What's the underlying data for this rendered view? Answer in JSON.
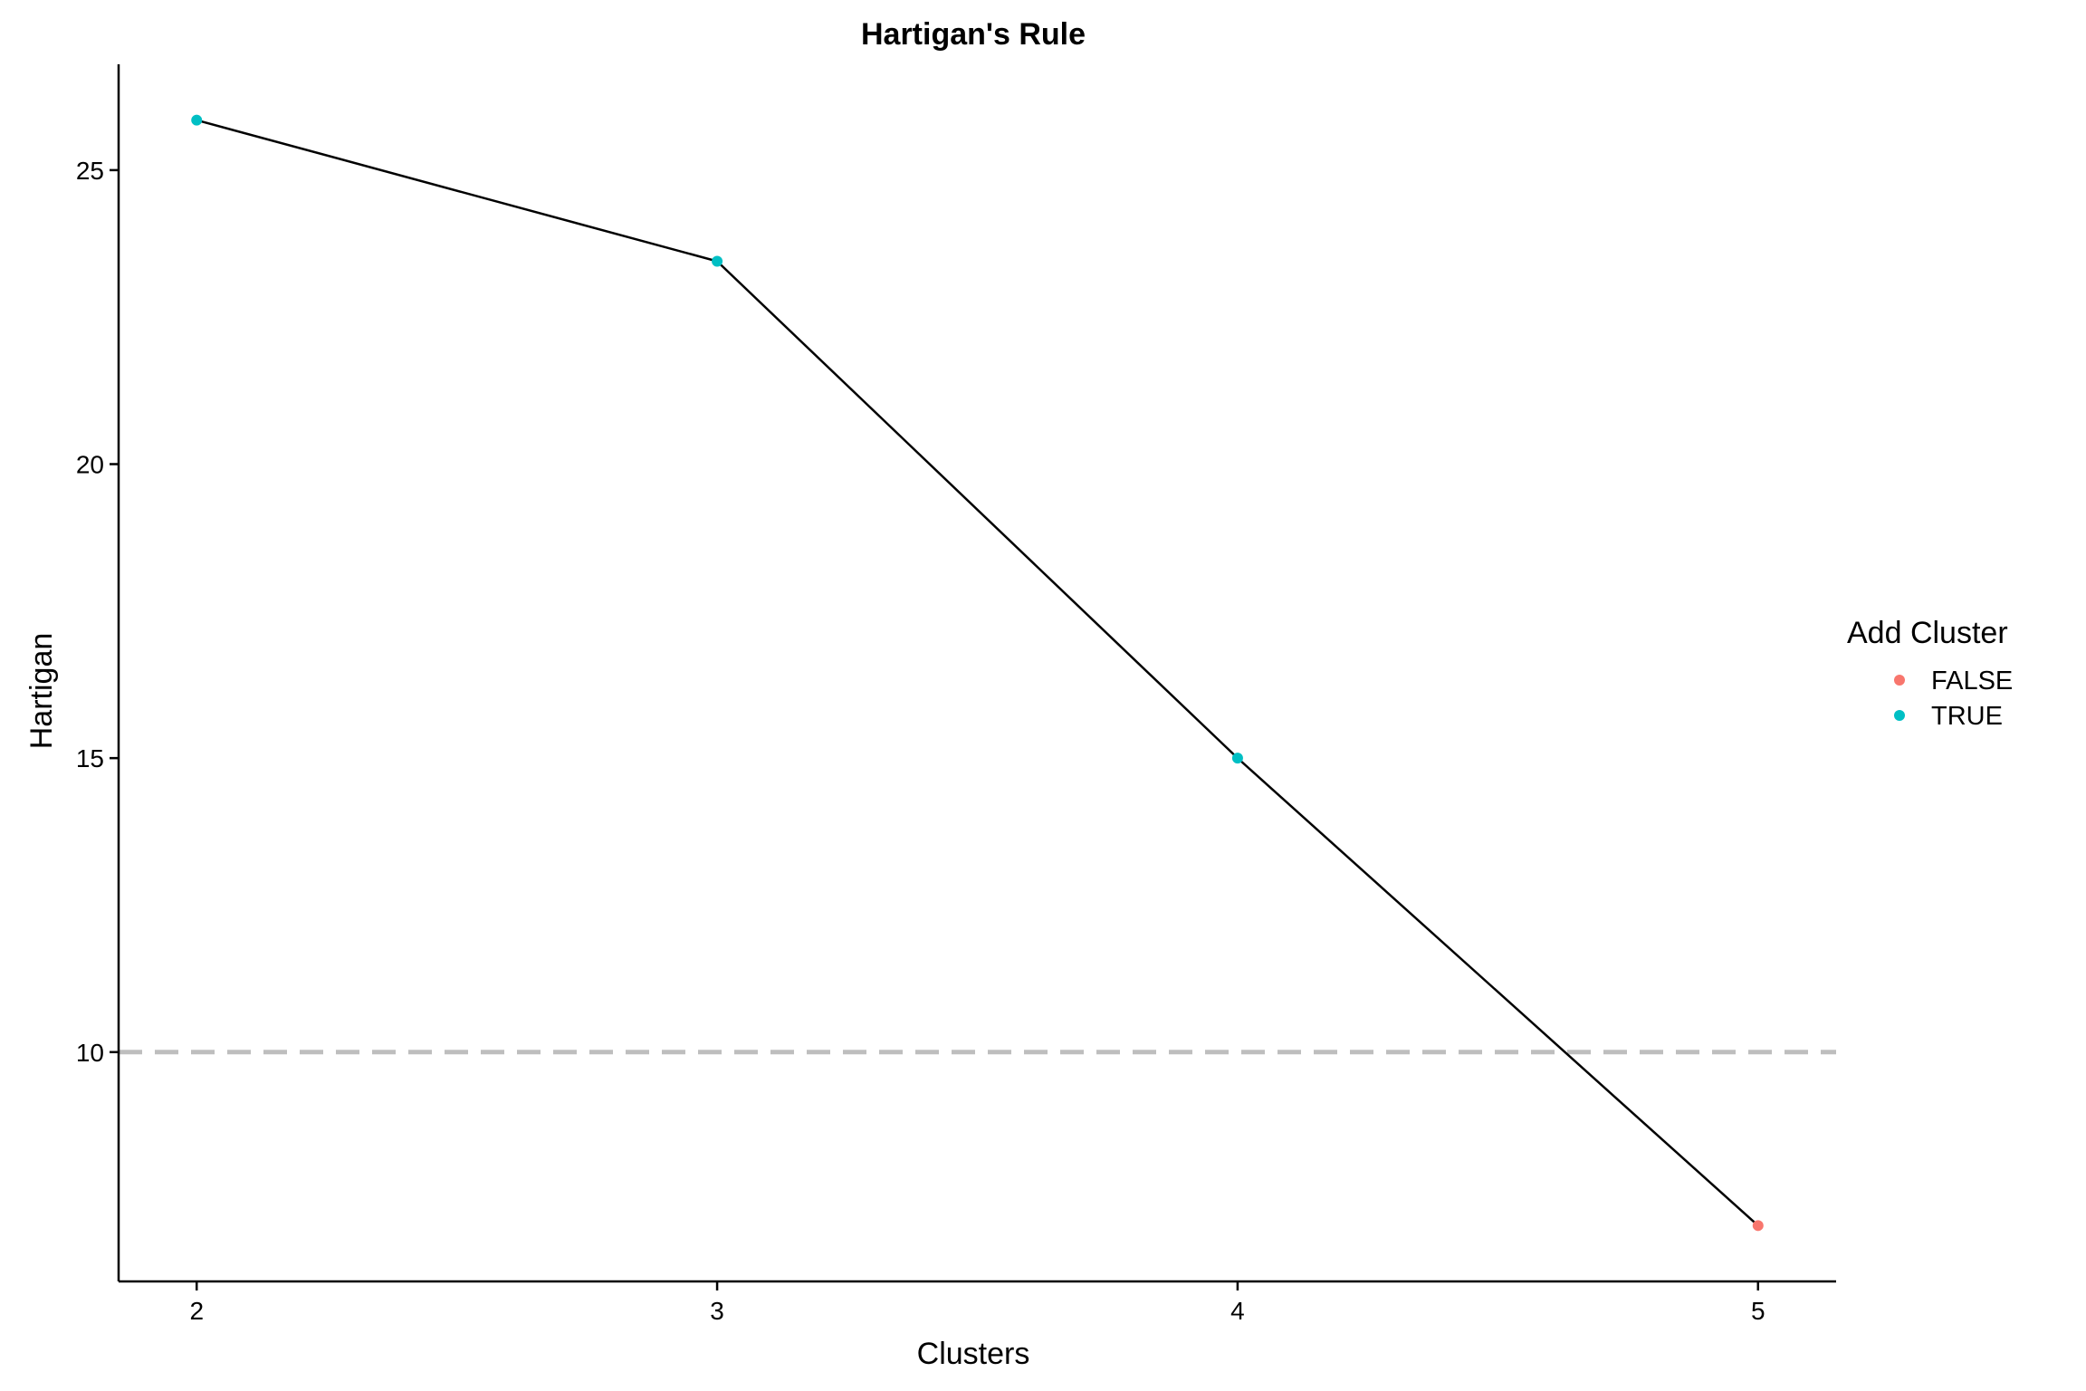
{
  "chart_data": {
    "type": "line",
    "title": "Hartigan's Rule",
    "xlabel": "Clusters",
    "ylabel": "Hartigan",
    "x": [
      2,
      3,
      4,
      5
    ],
    "y": [
      25.85,
      23.45,
      15.0,
      7.05
    ],
    "add_cluster": [
      "TRUE",
      "TRUE",
      "TRUE",
      "FALSE"
    ],
    "x_ticks": [
      2,
      3,
      4,
      5
    ],
    "y_ticks": [
      10,
      15,
      20,
      25
    ],
    "xlim": [
      1.85,
      5.15
    ],
    "ylim": [
      6.1,
      26.8
    ],
    "reference_line": {
      "y": 10,
      "style": "dashed",
      "color": "#bebebe"
    },
    "line_color": "#000000",
    "grid": false,
    "legend": {
      "title": "Add Cluster",
      "position": "right",
      "entries": [
        {
          "label": "FALSE",
          "color": "#F8766D"
        },
        {
          "label": "TRUE",
          "color": "#00BFC4"
        }
      ]
    }
  }
}
